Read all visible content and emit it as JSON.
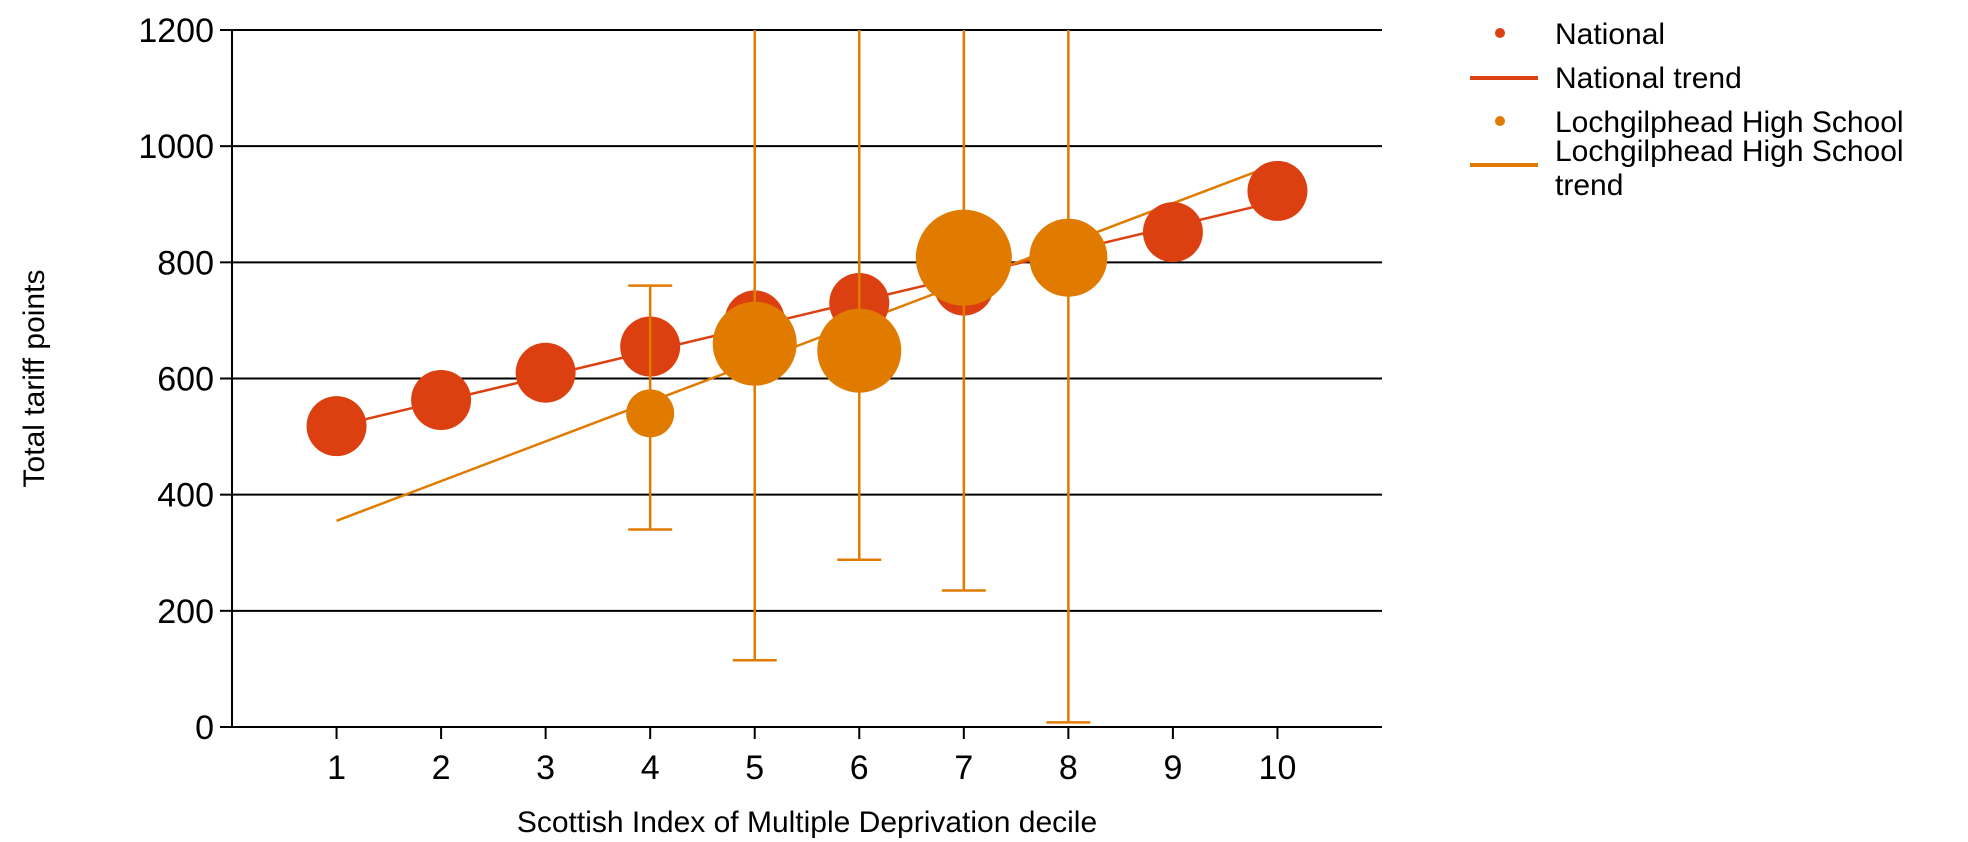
{
  "chart_data": {
    "type": "scatter",
    "title": "",
    "xlabel": "Scottish Index of Multiple Deprivation decile",
    "ylabel": "Total tariff points",
    "xlim": [
      0,
      11
    ],
    "ylim": [
      0,
      1200
    ],
    "x_ticks": [
      1,
      2,
      3,
      4,
      5,
      6,
      7,
      8,
      9,
      10
    ],
    "y_ticks": [
      0,
      200,
      400,
      600,
      800,
      1000,
      1200
    ],
    "grid": "horizontal",
    "legend_position": "right",
    "series": [
      {
        "name": "National",
        "kind": "bubble",
        "color": "#dd4010",
        "points": [
          {
            "x": 1,
            "y": 518,
            "size": 1.0
          },
          {
            "x": 2,
            "y": 563,
            "size": 1.0
          },
          {
            "x": 3,
            "y": 610,
            "size": 1.0
          },
          {
            "x": 4,
            "y": 655,
            "size": 1.0
          },
          {
            "x": 5,
            "y": 700,
            "size": 1.0
          },
          {
            "x": 6,
            "y": 730,
            "size": 1.0
          },
          {
            "x": 7,
            "y": 760,
            "size": 1.0
          },
          {
            "x": 8,
            "y": 812,
            "size": 1.0
          },
          {
            "x": 9,
            "y": 852,
            "size": 1.0
          },
          {
            "x": 10,
            "y": 923,
            "size": 1.0
          }
        ]
      },
      {
        "name": "National trend",
        "kind": "line",
        "color": "#dd4010",
        "points": [
          {
            "x": 1,
            "y": 518
          },
          {
            "x": 10,
            "y": 905
          }
        ]
      },
      {
        "name": "Lochgilphead High School",
        "kind": "bubble",
        "color": "#e07b00",
        "points": [
          {
            "x": 4,
            "y": 540,
            "size": 0.8,
            "err_low": 340,
            "err_high": 760
          },
          {
            "x": 5,
            "y": 660,
            "size": 1.4,
            "err_low": 115,
            "err_high": 1200
          },
          {
            "x": 6,
            "y": 648,
            "size": 1.4,
            "err_low": 288,
            "err_high": 1200
          },
          {
            "x": 7,
            "y": 808,
            "size": 1.6,
            "err_low": 235,
            "err_high": 1200
          },
          {
            "x": 8,
            "y": 808,
            "size": 1.3,
            "err_low": 8,
            "err_high": 1200
          }
        ]
      },
      {
        "name": "Lochgilphead High School trend",
        "kind": "line",
        "color": "#e07b00",
        "points": [
          {
            "x": 1,
            "y": 355
          },
          {
            "x": 10,
            "y": 970
          }
        ]
      }
    ],
    "legend": [
      {
        "label": "National",
        "marker": "dot",
        "color": "#dd4010"
      },
      {
        "label": "National trend",
        "marker": "line",
        "color": "#dd4010"
      },
      {
        "label": "Lochgilphead High School",
        "marker": "dot",
        "color": "#e07b00"
      },
      {
        "label": "Lochgilphead High School",
        "label_line2": "trend",
        "marker": "line",
        "color": "#e07b00"
      }
    ]
  }
}
